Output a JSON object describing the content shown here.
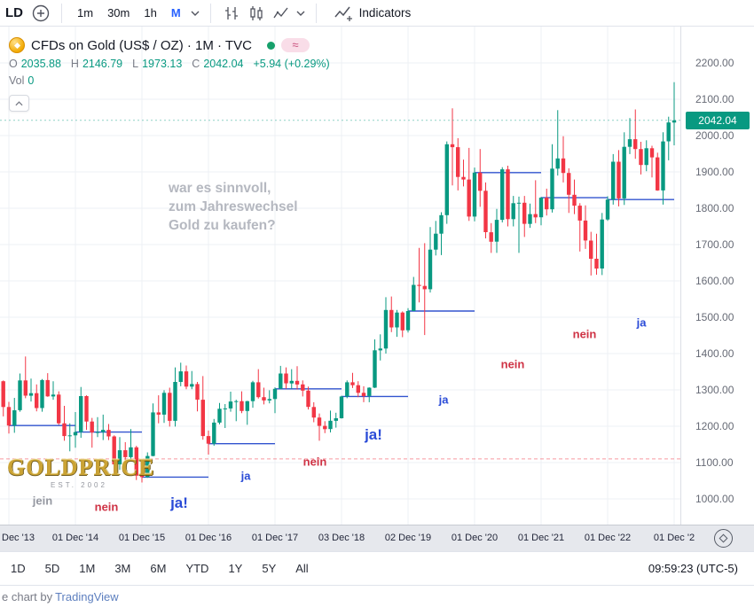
{
  "toolbar": {
    "symbol_partial": "LD",
    "intervals": [
      "1m",
      "30m",
      "1h",
      "M"
    ],
    "active_interval": "M",
    "indicators_label": "Indicators"
  },
  "legend": {
    "title": "CFDs on Gold (US$ / OZ) · 1M · TVC",
    "approx_symbol": "≈",
    "o_label": "O",
    "o_value": "2035.88",
    "h_label": "H",
    "h_value": "2146.79",
    "l_label": "L",
    "l_value": "1973.13",
    "c_label": "C",
    "c_value": "2042.04",
    "change": "+5.94 (+0.29%)",
    "vol_label": "Vol",
    "vol_value": "0"
  },
  "watermark": {
    "line1": "war es sinnvoll,",
    "line2": "zum Jahreswechsel",
    "line3": "Gold zu kaufen?"
  },
  "logo": {
    "text": "GOLDPRICE",
    "subtext": "EST. 2002"
  },
  "price_axis": {
    "labels": [
      "2200.00",
      "2100.00",
      "2000.00",
      "1900.00",
      "1800.00",
      "1700.00",
      "1600.00",
      "1500.00",
      "1400.00",
      "1300.00",
      "1200.00",
      "1100.00",
      "1000.00"
    ],
    "badge": "2042.04"
  },
  "time_axis": {
    "labels": [
      "Dec '13",
      "01 Dec '14",
      "01 Dec '15",
      "01 Dec '16",
      "01 Dec '17",
      "03 Dec '18",
      "02 Dec '19",
      "01 Dec '20",
      "01 Dec '21",
      "01 Dec '22",
      "01 Dec '2"
    ]
  },
  "bottom_toolbar": {
    "ranges": [
      "1D",
      "5D",
      "1M",
      "3M",
      "6M",
      "YTD",
      "1Y",
      "5Y",
      "All"
    ],
    "clock": "09:59:23 (UTC-5)"
  },
  "footer": {
    "prefix": "e chart by ",
    "link": "TradingView"
  },
  "colors": {
    "up": "#089981",
    "down": "#f23645",
    "accent": "#2962ff",
    "grid": "#eef0f4",
    "muted": "#787b86",
    "year_line": "#3254cf",
    "alert": "#f23645",
    "badge_bg": "#089981"
  },
  "chart_data": {
    "type": "candlestick",
    "title": "CFDs on Gold (US$ / OZ) · 1M · TVC",
    "interval": "1M",
    "x_range": [
      "2013-07",
      "2023-12"
    ],
    "ylim": [
      1000,
      2200
    ],
    "price_step": 100,
    "alert_line_price": 1110,
    "ohlc_current": {
      "open": 2035.88,
      "high": 2146.79,
      "low": 1973.13,
      "close": 2042.04,
      "change": "+5.94 (+0.29%)"
    },
    "year_close_lines": "horizontal blue segment at each December close, spanning the following year",
    "candles": [
      [
        "2013-07",
        1235,
        1348,
        1180,
        1320
      ],
      [
        "2013-08",
        1320,
        1434,
        1272,
        1395
      ],
      [
        "2013-09",
        1395,
        1416,
        1291,
        1327
      ],
      [
        "2013-10",
        1327,
        1361,
        1251,
        1324
      ],
      [
        "2013-11",
        1324,
        1326,
        1227,
        1253
      ],
      [
        "2013-12",
        1253,
        1267,
        1180,
        1202
      ],
      [
        "2014-01",
        1202,
        1278,
        1182,
        1244
      ],
      [
        "2014-02",
        1244,
        1345,
        1240,
        1326
      ],
      [
        "2014-03",
        1326,
        1392,
        1277,
        1284
      ],
      [
        "2014-04",
        1284,
        1331,
        1268,
        1291
      ],
      [
        "2014-05",
        1291,
        1315,
        1241,
        1250
      ],
      [
        "2014-06",
        1250,
        1330,
        1240,
        1327
      ],
      [
        "2014-07",
        1327,
        1346,
        1281,
        1282
      ],
      [
        "2014-08",
        1282,
        1324,
        1273,
        1287
      ],
      [
        "2014-09",
        1287,
        1296,
        1204,
        1208
      ],
      [
        "2014-10",
        1208,
        1256,
        1160,
        1173
      ],
      [
        "2014-11",
        1173,
        1208,
        1131,
        1175
      ],
      [
        "2014-12",
        1175,
        1239,
        1141,
        1184
      ],
      [
        "2015-01",
        1184,
        1308,
        1168,
        1283
      ],
      [
        "2015-02",
        1283,
        1285,
        1190,
        1213
      ],
      [
        "2015-03",
        1213,
        1223,
        1141,
        1183
      ],
      [
        "2015-04",
        1183,
        1225,
        1170,
        1184
      ],
      [
        "2015-05",
        1184,
        1232,
        1162,
        1190
      ],
      [
        "2015-06",
        1190,
        1206,
        1162,
        1172
      ],
      [
        "2015-07",
        1172,
        1175,
        1072,
        1095
      ],
      [
        "2015-08",
        1095,
        1170,
        1080,
        1134
      ],
      [
        "2015-09",
        1134,
        1156,
        1098,
        1115
      ],
      [
        "2015-10",
        1115,
        1192,
        1104,
        1142
      ],
      [
        "2015-11",
        1142,
        1146,
        1052,
        1064
      ],
      [
        "2015-12",
        1064,
        1088,
        1045,
        1060
      ],
      [
        "2016-01",
        1060,
        1128,
        1058,
        1118
      ],
      [
        "2016-02",
        1118,
        1263,
        1117,
        1238
      ],
      [
        "2016-03",
        1238,
        1285,
        1208,
        1232
      ],
      [
        "2016-04",
        1232,
        1299,
        1209,
        1292
      ],
      [
        "2016-05",
        1292,
        1306,
        1199,
        1215
      ],
      [
        "2016-06",
        1215,
        1362,
        1199,
        1322
      ],
      [
        "2016-07",
        1322,
        1375,
        1310,
        1351
      ],
      [
        "2016-08",
        1351,
        1367,
        1302,
        1309
      ],
      [
        "2016-09",
        1309,
        1352,
        1302,
        1316
      ],
      [
        "2016-10",
        1316,
        1322,
        1241,
        1273
      ],
      [
        "2016-11",
        1273,
        1338,
        1163,
        1173
      ],
      [
        "2016-12",
        1173,
        1188,
        1122,
        1152
      ],
      [
        "2017-01",
        1152,
        1220,
        1146,
        1210
      ],
      [
        "2017-02",
        1210,
        1264,
        1205,
        1248
      ],
      [
        "2017-03",
        1248,
        1261,
        1195,
        1249
      ],
      [
        "2017-04",
        1249,
        1295,
        1240,
        1268
      ],
      [
        "2017-05",
        1268,
        1273,
        1214,
        1269
      ],
      [
        "2017-06",
        1269,
        1296,
        1236,
        1242
      ],
      [
        "2017-07",
        1242,
        1270,
        1204,
        1269
      ],
      [
        "2017-08",
        1269,
        1325,
        1251,
        1321
      ],
      [
        "2017-09",
        1321,
        1357,
        1276,
        1280
      ],
      [
        "2017-10",
        1280,
        1306,
        1260,
        1271
      ],
      [
        "2017-11",
        1271,
        1299,
        1263,
        1275
      ],
      [
        "2017-12",
        1275,
        1307,
        1236,
        1303
      ],
      [
        "2018-01",
        1303,
        1366,
        1302,
        1345
      ],
      [
        "2018-02",
        1345,
        1362,
        1303,
        1318
      ],
      [
        "2018-03",
        1318,
        1357,
        1303,
        1325
      ],
      [
        "2018-04",
        1325,
        1365,
        1301,
        1315
      ],
      [
        "2018-05",
        1315,
        1326,
        1282,
        1298
      ],
      [
        "2018-06",
        1298,
        1309,
        1246,
        1253
      ],
      [
        "2018-07",
        1253,
        1266,
        1211,
        1224
      ],
      [
        "2018-08",
        1224,
        1235,
        1160,
        1201
      ],
      [
        "2018-09",
        1201,
        1214,
        1181,
        1192
      ],
      [
        "2018-10",
        1192,
        1243,
        1183,
        1215
      ],
      [
        "2018-11",
        1215,
        1237,
        1196,
        1222
      ],
      [
        "2018-12",
        1222,
        1284,
        1221,
        1282
      ],
      [
        "2019-01",
        1282,
        1326,
        1277,
        1321
      ],
      [
        "2019-02",
        1321,
        1347,
        1305,
        1313
      ],
      [
        "2019-03",
        1313,
        1324,
        1280,
        1292
      ],
      [
        "2019-04",
        1292,
        1310,
        1266,
        1283
      ],
      [
        "2019-05",
        1283,
        1307,
        1266,
        1306
      ],
      [
        "2019-06",
        1306,
        1439,
        1305,
        1409
      ],
      [
        "2019-07",
        1409,
        1453,
        1381,
        1414
      ],
      [
        "2019-08",
        1414,
        1555,
        1400,
        1520
      ],
      [
        "2019-09",
        1520,
        1557,
        1459,
        1472
      ],
      [
        "2019-10",
        1472,
        1520,
        1446,
        1513
      ],
      [
        "2019-11",
        1513,
        1516,
        1445,
        1464
      ],
      [
        "2019-12",
        1464,
        1525,
        1458,
        1517
      ],
      [
        "2020-01",
        1517,
        1611,
        1517,
        1589
      ],
      [
        "2020-02",
        1589,
        1691,
        1541,
        1586
      ],
      [
        "2020-03",
        1586,
        1704,
        1451,
        1577
      ],
      [
        "2020-04",
        1577,
        1748,
        1568,
        1686
      ],
      [
        "2020-05",
        1686,
        1765,
        1670,
        1730
      ],
      [
        "2020-06",
        1730,
        1789,
        1671,
        1781
      ],
      [
        "2020-07",
        1781,
        1984,
        1757,
        1976
      ],
      [
        "2020-08",
        1976,
        2075,
        1863,
        1968
      ],
      [
        "2020-09",
        1968,
        1993,
        1849,
        1886
      ],
      [
        "2020-10",
        1886,
        1934,
        1860,
        1879
      ],
      [
        "2020-11",
        1879,
        1966,
        1765,
        1777
      ],
      [
        "2020-12",
        1777,
        1912,
        1764,
        1898
      ],
      [
        "2021-01",
        1898,
        1963,
        1804,
        1848
      ],
      [
        "2021-02",
        1848,
        1871,
        1717,
        1734
      ],
      [
        "2021-03",
        1734,
        1759,
        1677,
        1708
      ],
      [
        "2021-04",
        1708,
        1798,
        1677,
        1768
      ],
      [
        "2021-05",
        1768,
        1913,
        1761,
        1907
      ],
      [
        "2021-06",
        1907,
        1917,
        1750,
        1770
      ],
      [
        "2021-07",
        1770,
        1834,
        1750,
        1814
      ],
      [
        "2021-08",
        1814,
        1832,
        1677,
        1815
      ],
      [
        "2021-09",
        1815,
        1834,
        1721,
        1757
      ],
      [
        "2021-10",
        1757,
        1813,
        1746,
        1784
      ],
      [
        "2021-11",
        1784,
        1877,
        1759,
        1775
      ],
      [
        "2021-12",
        1775,
        1831,
        1753,
        1829
      ],
      [
        "2022-01",
        1829,
        1854,
        1780,
        1797
      ],
      [
        "2022-02",
        1797,
        1976,
        1788,
        1909
      ],
      [
        "2022-03",
        1909,
        2070,
        1890,
        1937
      ],
      [
        "2022-04",
        1937,
        1998,
        1871,
        1897
      ],
      [
        "2022-05",
        1897,
        1910,
        1787,
        1837
      ],
      [
        "2022-06",
        1837,
        1879,
        1784,
        1807
      ],
      [
        "2022-07",
        1807,
        1814,
        1681,
        1766
      ],
      [
        "2022-08",
        1766,
        1808,
        1688,
        1711
      ],
      [
        "2022-09",
        1711,
        1735,
        1615,
        1661
      ],
      [
        "2022-10",
        1661,
        1730,
        1617,
        1634
      ],
      [
        "2022-11",
        1634,
        1787,
        1616,
        1769
      ],
      [
        "2022-12",
        1769,
        1833,
        1765,
        1824
      ],
      [
        "2023-01",
        1824,
        1949,
        1810,
        1928
      ],
      [
        "2023-02",
        1928,
        1960,
        1805,
        1827
      ],
      [
        "2023-03",
        1827,
        2009,
        1809,
        1969
      ],
      [
        "2023-04",
        1969,
        2048,
        1949,
        1990
      ],
      [
        "2023-05",
        1990,
        2072,
        1936,
        1963
      ],
      [
        "2023-06",
        1963,
        1983,
        1893,
        1919
      ],
      [
        "2023-07",
        1919,
        1987,
        1902,
        1965
      ],
      [
        "2023-08",
        1965,
        1972,
        1885,
        1940
      ],
      [
        "2023-09",
        1940,
        1953,
        1848,
        1849
      ],
      [
        "2023-10",
        1849,
        2009,
        1810,
        1984
      ],
      [
        "2023-11",
        1984,
        2052,
        1932,
        2036
      ],
      [
        "2023-12",
        2035.88,
        2146.79,
        1973.13,
        2042.04
      ]
    ],
    "annotations": [
      {
        "text": "jein",
        "x": 48,
        "y": 535,
        "color": "#9598a1",
        "size": 13
      },
      {
        "text": "nein",
        "x": 120,
        "y": 542,
        "color": "#cf3345",
        "size": 13
      },
      {
        "text": "ja!",
        "x": 202,
        "y": 538,
        "color": "#2a4bd7",
        "size": 17
      },
      {
        "text": "ja",
        "x": 277,
        "y": 507,
        "color": "#2a4bd7",
        "size": 13
      },
      {
        "text": "nein",
        "x": 355,
        "y": 491,
        "color": "#cf3345",
        "size": 13
      },
      {
        "text": "ja!",
        "x": 421,
        "y": 461,
        "color": "#2a4bd7",
        "size": 17
      },
      {
        "text": "ja",
        "x": 500,
        "y": 421,
        "color": "#2a4bd7",
        "size": 13
      },
      {
        "text": "nein",
        "x": 578,
        "y": 381,
        "color": "#cf3345",
        "size": 13
      },
      {
        "text": "nein",
        "x": 659,
        "y": 347,
        "color": "#cf3345",
        "size": 13
      },
      {
        "text": "ja",
        "x": 723,
        "y": 334,
        "color": "#2a4bd7",
        "size": 13
      }
    ]
  }
}
